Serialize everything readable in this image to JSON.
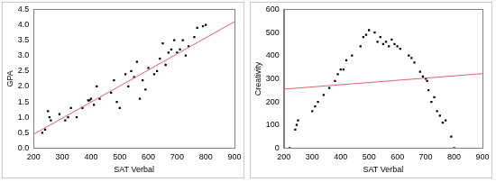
{
  "chart_data": [
    {
      "type": "scatter",
      "x_label": "SAT Verbal",
      "y_label": "GPA",
      "xlim": [
        200,
        900
      ],
      "xticks": [
        200,
        300,
        400,
        500,
        600,
        700,
        800,
        900
      ],
      "ylim": [
        0,
        4.5
      ],
      "yticks": [
        {
          "value": 0,
          "label": "0.0"
        },
        0.5,
        {
          "value": 1,
          "label": "1.0"
        },
        1.5,
        {
          "value": 2,
          "label": "2.0"
        },
        2.5,
        {
          "value": 3,
          "label": "3.0"
        },
        3.5,
        {
          "value": 4,
          "label": "4.0"
        },
        4.5
      ],
      "grid": false,
      "series": [
        {
          "type": "scatter",
          "color": "#000000",
          "marker": "square",
          "x": [
            230,
            240,
            250,
            255,
            260,
            290,
            310,
            320,
            330,
            350,
            370,
            390,
            395,
            400,
            410,
            420,
            430,
            470,
            480,
            490,
            500,
            520,
            530,
            540,
            550,
            560,
            570,
            580,
            590,
            600,
            620,
            630,
            640,
            650,
            660,
            670,
            680,
            690,
            700,
            710,
            720,
            730,
            740,
            760,
            770,
            790,
            800
          ],
          "values": [
            0.5,
            0.6,
            1.2,
            1.0,
            0.9,
            1.1,
            0.9,
            1.0,
            1.3,
            1.0,
            1.3,
            1.55,
            1.55,
            1.6,
            1.4,
            2.0,
            1.6,
            1.8,
            2.2,
            1.5,
            1.3,
            2.4,
            2.0,
            2.5,
            2.3,
            2.8,
            1.6,
            2.2,
            1.9,
            2.6,
            2.4,
            2.5,
            2.9,
            3.4,
            2.7,
            3.1,
            3.2,
            3.5,
            3.1,
            3.2,
            3.5,
            3.0,
            3.3,
            3.6,
            3.9,
            3.95,
            4.0
          ]
        },
        {
          "type": "line",
          "color": "#e06070",
          "line_style": "solid",
          "x": [
            200,
            900
          ],
          "values": [
            0.45,
            4.1
          ]
        }
      ]
    },
    {
      "type": "scatter",
      "x_label": "SAT Verbal",
      "y_label": "Creativity",
      "xlim": [
        200,
        900
      ],
      "xticks": [
        200,
        300,
        400,
        500,
        600,
        700,
        800,
        900
      ],
      "ylim": [
        0,
        600
      ],
      "yticks": [
        0,
        100,
        200,
        300,
        400,
        500,
        600
      ],
      "grid": false,
      "series": [
        {
          "type": "scatter",
          "color": "#000000",
          "marker": "square",
          "x": [
            220,
            240,
            245,
            250,
            300,
            310,
            320,
            340,
            360,
            380,
            390,
            400,
            410,
            420,
            440,
            470,
            480,
            490,
            500,
            520,
            530,
            540,
            550,
            560,
            570,
            580,
            590,
            600,
            610,
            640,
            650,
            660,
            680,
            690,
            700,
            705,
            710,
            720,
            730,
            740,
            750,
            760,
            770,
            790,
            800
          ],
          "values": [
            0,
            80,
            100,
            120,
            160,
            180,
            200,
            230,
            260,
            290,
            320,
            340,
            340,
            380,
            400,
            440,
            480,
            490,
            510,
            500,
            460,
            480,
            450,
            460,
            440,
            470,
            450,
            440,
            430,
            400,
            390,
            370,
            330,
            310,
            300,
            290,
            250,
            200,
            220,
            160,
            140,
            110,
            120,
            50,
            0
          ]
        },
        {
          "type": "line",
          "color": "#e06070",
          "line_style": "solid",
          "x": [
            200,
            900
          ],
          "values": [
            255,
            322
          ]
        }
      ]
    }
  ]
}
